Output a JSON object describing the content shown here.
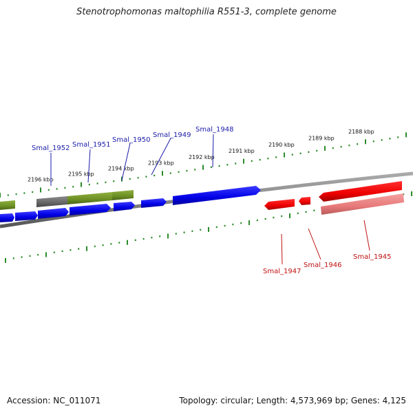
{
  "title": "Stenotrophomonas maltophilia R551-3, complete genome",
  "footer": {
    "accession": "Accession: NC_011071",
    "summary": "Topology: circular; Length: 4,573,969 bp; Genes: 4,125"
  },
  "colors": {
    "backbone": "#888888",
    "ticks": "#2a8a2a",
    "forward_gene": "#0000ee",
    "forward_label": "#1a1aa8",
    "reverse_gene": "#ee0000",
    "reverse_label": "#c01010",
    "rna_gene": "#6b8e23",
    "pseudo_gene": "#666666",
    "reverse_pseudo_gene": "#e87a7a"
  },
  "kbp_labels": [
    {
      "kbp": 2196,
      "text": "2196 kbp"
    },
    {
      "kbp": 2195,
      "text": "2195 kbp"
    },
    {
      "kbp": 2194,
      "text": "2194 kbp"
    },
    {
      "kbp": 2193,
      "text": "2193 kbp"
    },
    {
      "kbp": 2192,
      "text": "2192 kbp"
    },
    {
      "kbp": 2191,
      "text": "2191 kbp"
    },
    {
      "kbp": 2190,
      "text": "2190 kbp"
    },
    {
      "kbp": 2189,
      "text": "2189 kbp"
    },
    {
      "kbp": 2188,
      "text": "2188 kbp"
    }
  ],
  "gene_labels": [
    {
      "text": "Smal_1952",
      "strand": "forward"
    },
    {
      "text": "Smal_1951",
      "strand": "forward"
    },
    {
      "text": "Smal_1950",
      "strand": "forward"
    },
    {
      "text": "Smal_1949",
      "strand": "forward"
    },
    {
      "text": "Smal_1948",
      "strand": "forward"
    },
    {
      "text": "Smal_1947",
      "strand": "reverse"
    },
    {
      "text": "Smal_1946",
      "strand": "reverse"
    },
    {
      "text": "Smal_1945",
      "strand": "reverse"
    }
  ]
}
